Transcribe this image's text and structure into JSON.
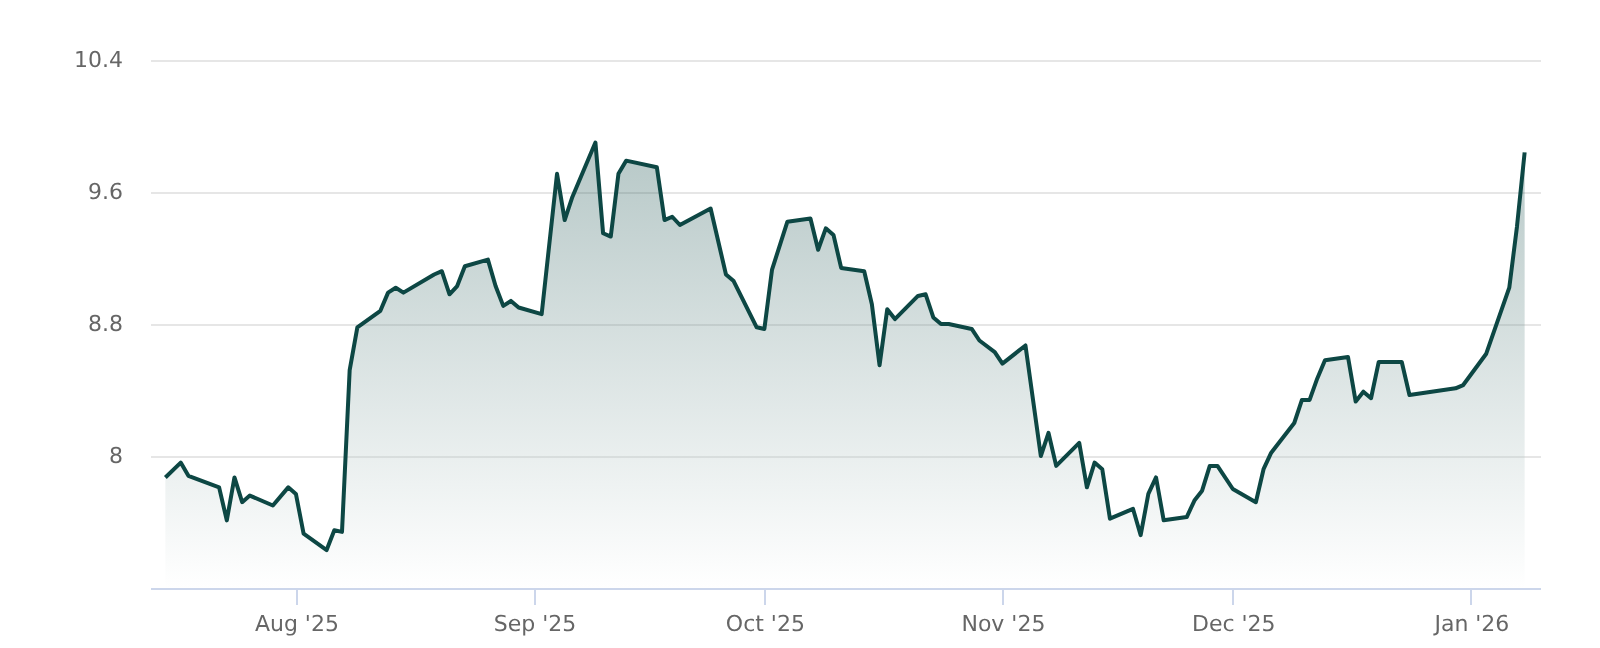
{
  "chart_data": {
    "type": "area",
    "x": [
      "2025-07-15",
      "2025-07-17",
      "2025-07-18",
      "2025-07-22",
      "2025-07-23",
      "2025-07-24",
      "2025-07-25",
      "2025-07-26",
      "2025-07-29",
      "2025-07-31",
      "2025-08-01",
      "2025-08-02",
      "2025-08-05",
      "2025-08-06",
      "2025-08-07",
      "2025-08-08",
      "2025-08-09",
      "2025-08-12",
      "2025-08-13",
      "2025-08-14",
      "2025-08-15",
      "2025-08-19",
      "2025-08-20",
      "2025-08-21",
      "2025-08-22",
      "2025-08-23",
      "2025-08-26",
      "2025-08-27",
      "2025-08-28",
      "2025-08-29",
      "2025-08-30",
      "2025-09-02",
      "2025-09-04",
      "2025-09-05",
      "2025-09-06",
      "2025-09-09",
      "2025-09-10",
      "2025-09-11",
      "2025-09-12",
      "2025-09-13",
      "2025-09-17",
      "2025-09-18",
      "2025-09-19",
      "2025-09-20",
      "2025-09-24",
      "2025-09-26",
      "2025-09-27",
      "2025-09-30",
      "2025-10-01",
      "2025-10-02",
      "2025-10-04",
      "2025-10-07",
      "2025-10-08",
      "2025-10-09",
      "2025-10-10",
      "2025-10-11",
      "2025-10-14",
      "2025-10-15",
      "2025-10-16",
      "2025-10-17",
      "2025-10-18",
      "2025-10-21",
      "2025-10-22",
      "2025-10-23",
      "2025-10-24",
      "2025-10-25",
      "2025-10-28",
      "2025-10-29",
      "2025-10-31",
      "2025-11-01",
      "2025-11-04",
      "2025-11-06",
      "2025-11-07",
      "2025-11-08",
      "2025-11-11",
      "2025-11-12",
      "2025-11-13",
      "2025-11-14",
      "2025-11-15",
      "2025-11-18",
      "2025-11-19",
      "2025-11-20",
      "2025-11-21",
      "2025-11-22",
      "2025-11-25",
      "2025-11-26",
      "2025-11-27",
      "2025-11-28",
      "2025-11-29",
      "2025-12-01",
      "2025-12-04",
      "2025-12-05",
      "2025-12-06",
      "2025-12-09",
      "2025-12-10",
      "2025-12-11",
      "2025-12-12",
      "2025-12-13",
      "2025-12-16",
      "2025-12-17",
      "2025-12-18",
      "2025-12-19",
      "2025-12-20",
      "2025-12-23",
      "2025-12-24",
      "2025-12-30",
      "2025-12-31",
      "2026-01-03",
      "2026-01-06",
      "2026-01-07",
      "2026-01-08"
    ],
    "series": [
      {
        "color": "#0d4744",
        "values": [
          7.87,
          7.96,
          7.88,
          7.81,
          7.61,
          7.87,
          7.72,
          7.76,
          7.7,
          7.81,
          7.77,
          7.53,
          7.43,
          7.55,
          7.54,
          8.52,
          8.78,
          8.88,
          8.99,
          9.02,
          8.99,
          9.1,
          9.12,
          8.98,
          9.03,
          9.15,
          9.19,
          9.03,
          8.91,
          8.94,
          8.9,
          8.86,
          9.71,
          9.43,
          9.57,
          9.9,
          9.35,
          9.33,
          9.71,
          9.79,
          9.75,
          9.43,
          9.45,
          9.4,
          9.5,
          9.1,
          9.06,
          8.78,
          8.77,
          9.13,
          9.42,
          9.44,
          9.25,
          9.38,
          9.34,
          9.14,
          9.12,
          8.92,
          8.55,
          8.89,
          8.83,
          8.97,
          8.98,
          8.84,
          8.8,
          8.8,
          8.77,
          8.7,
          8.63,
          8.56,
          8.67,
          8.0,
          8.14,
          7.94,
          8.08,
          7.81,
          7.96,
          7.92,
          7.62,
          7.68,
          7.52,
          7.77,
          7.87,
          7.61,
          7.63,
          7.73,
          7.79,
          7.94,
          7.94,
          7.8,
          7.72,
          7.92,
          8.02,
          8.2,
          8.34,
          8.34,
          8.47,
          8.58,
          8.6,
          8.33,
          8.39,
          8.35,
          8.57,
          8.57,
          8.37,
          8.41,
          8.43,
          8.62,
          9.02,
          9.39,
          9.84
        ]
      }
    ],
    "xlim": [
      "2025-07-13",
      "2026-01-10"
    ],
    "xticks": [
      {
        "value": "2025-08-01",
        "label": "Aug '25"
      },
      {
        "value": "2025-09-01",
        "label": "Sep '25"
      },
      {
        "value": "2025-10-01",
        "label": "Oct '25"
      },
      {
        "value": "2025-11-01",
        "label": "Nov '25"
      },
      {
        "value": "2025-12-01",
        "label": "Dec '25"
      },
      {
        "value": "2026-01-01",
        "label": "Jan '26"
      }
    ],
    "ylim": [
      7.2,
      10.4
    ],
    "yticks": [
      8,
      8.8,
      9.6,
      10.4
    ],
    "grid": "y"
  }
}
